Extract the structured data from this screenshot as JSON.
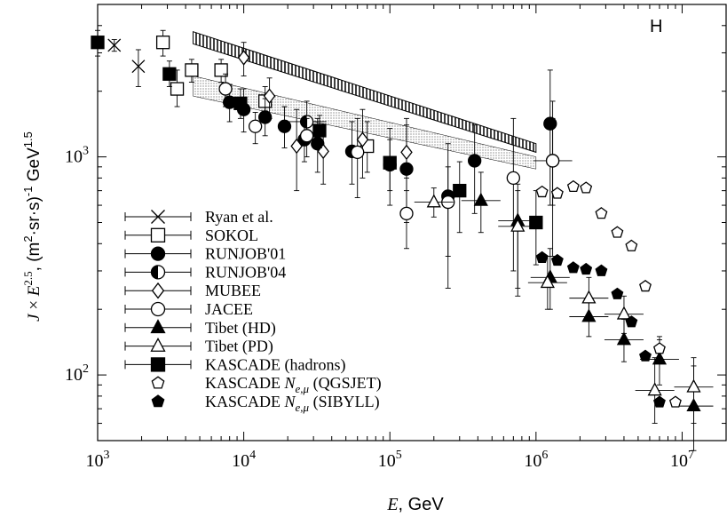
{
  "chart_data": {
    "type": "scatter",
    "panel_label": "H",
    "xlabel_italic": "E",
    "xlabel_rest": ", GeV",
    "ylabel_parts": {
      "J": "J",
      "times": " × ",
      "E": "E",
      "exp": "2.5",
      "unit_a": ", (m",
      "unit_sq": "2",
      "unit_b": "·sr·s)",
      "unit_m1": "-1",
      "unit_c": " GeV",
      "unit_exp": "1.5"
    },
    "x_scale": "log",
    "y_scale": "log",
    "xlim": [
      1000,
      20000000
    ],
    "ylim": [
      50,
      5000
    ],
    "x_ticks": [
      {
        "value": 1000,
        "base": "10",
        "exp": "3"
      },
      {
        "value": 10000,
        "base": "10",
        "exp": "4"
      },
      {
        "value": 100000,
        "base": "10",
        "exp": "5"
      },
      {
        "value": 1000000,
        "base": "10",
        "exp": "6"
      },
      {
        "value": 10000000,
        "base": "10",
        "exp": "7"
      }
    ],
    "y_ticks": [
      {
        "value": 100,
        "base": "10",
        "exp": "2"
      },
      {
        "value": 1000,
        "base": "10",
        "exp": "3"
      }
    ],
    "legend_placement": "bottom-left",
    "bands": [
      {
        "style": "hatched",
        "upper": [
          [
            4500,
            3750
          ],
          [
            1000000,
            1150
          ]
        ],
        "lower": [
          [
            4500,
            3300
          ],
          [
            1000000,
            1050
          ]
        ]
      },
      {
        "style": "dotted",
        "upper": [
          [
            4500,
            2350
          ],
          [
            1000000,
            1000
          ]
        ],
        "lower": [
          [
            4500,
            1900
          ],
          [
            1000000,
            880
          ]
        ]
      }
    ],
    "series": [
      {
        "name": "Ryan et al.",
        "marker": "cross",
        "points": [
          [
            1300,
            3250,
            3050,
            3450
          ],
          [
            1900,
            2600,
            2100,
            3100
          ]
        ]
      },
      {
        "name": "SOKOL",
        "marker": "open-square",
        "points": [
          [
            2800,
            3350,
            2900,
            3800
          ],
          [
            3500,
            2050,
            1700,
            2500
          ],
          [
            4400,
            2500,
            2200,
            2800
          ],
          [
            7000,
            2500,
            2200,
            2800
          ],
          [
            14000,
            1800,
            1550,
            2100
          ],
          [
            70000,
            1120,
            850,
            1450
          ]
        ]
      },
      {
        "name": "RUNJOB'01",
        "marker": "filled-circle",
        "points": [
          [
            8000,
            1780,
            1450,
            2150
          ],
          [
            10000,
            1650,
            1300,
            2050
          ],
          [
            14000,
            1520,
            1250,
            1850
          ],
          [
            19000,
            1380,
            1100,
            1700
          ],
          [
            26000,
            1200,
            950,
            1500
          ],
          [
            32000,
            1150,
            850,
            1500
          ],
          [
            55000,
            1060,
            750,
            1450
          ],
          [
            100000,
            920,
            600,
            1350
          ],
          [
            130000,
            880,
            500,
            1400
          ],
          [
            250000,
            660,
            250,
            1150
          ],
          [
            380000,
            960,
            550,
            1400
          ],
          [
            1250000,
            1420,
            600,
            2500
          ]
        ]
      },
      {
        "name": "RUNJOB'04",
        "marker": "half-circle",
        "points": [
          [
            27000,
            1450,
            1150,
            1800
          ],
          [
            1300000,
            960,
            600,
            1500
          ]
        ]
      },
      {
        "name": "MUBEE",
        "marker": "open-diamond",
        "points": [
          [
            10000,
            2850,
            2350,
            3350
          ],
          [
            15000,
            1900,
            1500,
            2300
          ],
          [
            23000,
            1120,
            700,
            1650
          ],
          [
            35000,
            1060,
            750,
            1400
          ],
          [
            65000,
            1200,
            800,
            1650
          ],
          [
            130000,
            1050,
            700,
            1500
          ]
        ]
      },
      {
        "name": "JACEE",
        "marker": "open-circle",
        "points": [
          [
            7500,
            2050,
            1700,
            2400
          ],
          [
            12000,
            1380,
            1150,
            1600
          ],
          [
            27000,
            1250,
            1000,
            1500
          ],
          [
            60000,
            1050,
            650,
            1500
          ],
          [
            130000,
            550,
            380,
            800
          ],
          [
            250000,
            620,
            350,
            900
          ],
          [
            700000,
            800,
            300,
            1500
          ],
          [
            1300000,
            960,
            350,
            1800
          ]
        ]
      },
      {
        "name": "Tibet (HD)",
        "marker": "filled-triangle",
        "points": [
          [
            420000,
            630,
            450,
            850
          ],
          [
            750000,
            510,
            250,
            750
          ],
          [
            1250000,
            280,
            200,
            380
          ],
          [
            2300000,
            185,
            150,
            230
          ],
          [
            4000000,
            145,
            115,
            180
          ],
          [
            7000000,
            118,
            90,
            150
          ],
          [
            12000000,
            72,
            45,
            110
          ]
        ]
      },
      {
        "name": "Tibet (PD)",
        "marker": "open-triangle",
        "points": [
          [
            200000,
            620,
            530,
            720
          ],
          [
            750000,
            480,
            230,
            700
          ],
          [
            1200000,
            265,
            200,
            350
          ],
          [
            2300000,
            225,
            180,
            280
          ],
          [
            4000000,
            190,
            155,
            230
          ],
          [
            6500000,
            85,
            60,
            120
          ],
          [
            12000000,
            88,
            60,
            120
          ]
        ]
      },
      {
        "name": "KASCADE (hadrons)",
        "marker": "filled-square",
        "points": [
          [
            1000,
            3350,
            2900,
            3800
          ],
          [
            3100,
            2400,
            2100,
            2750
          ],
          [
            9500,
            1760,
            1500,
            2050
          ],
          [
            33000,
            1320,
            1100,
            1550
          ],
          [
            100000,
            940,
            700,
            1200
          ],
          [
            300000,
            700,
            450,
            950
          ],
          [
            1000000,
            500,
            320,
            700
          ]
        ]
      },
      {
        "name": "KASCADE N_{e,μ} (QGSJET)",
        "marker": "open-pentagon",
        "points": [
          [
            1100000,
            690,
            null,
            null
          ],
          [
            1400000,
            680,
            null,
            null
          ],
          [
            1800000,
            730,
            null,
            null
          ],
          [
            2200000,
            720,
            null,
            null
          ],
          [
            2800000,
            550,
            null,
            null
          ],
          [
            3600000,
            450,
            null,
            null
          ],
          [
            4500000,
            390,
            null,
            null
          ],
          [
            5600000,
            255,
            null,
            null
          ],
          [
            7000000,
            132,
            120,
            145
          ],
          [
            9000000,
            75,
            null,
            null
          ]
        ]
      },
      {
        "name": "KASCADE N_{e,μ} (SIBYLL)",
        "marker": "filled-pentagon",
        "points": [
          [
            1100000,
            345,
            null,
            null
          ],
          [
            1400000,
            335,
            null,
            null
          ],
          [
            1800000,
            310,
            null,
            null
          ],
          [
            2200000,
            305,
            null,
            null
          ],
          [
            2800000,
            300,
            null,
            null
          ],
          [
            3600000,
            235,
            null,
            null
          ],
          [
            4500000,
            175,
            null,
            null
          ],
          [
            5600000,
            122,
            null,
            null
          ],
          [
            7000000,
            75,
            null,
            null
          ]
        ]
      }
    ],
    "legend_entries": [
      {
        "marker": "cross",
        "text": "Ryan et al."
      },
      {
        "marker": "open-square",
        "text": "SOKOL"
      },
      {
        "marker": "filled-circle",
        "text": "RUNJOB'01"
      },
      {
        "marker": "half-circle",
        "text": "RUNJOB'04"
      },
      {
        "marker": "open-diamond",
        "text": "MUBEE"
      },
      {
        "marker": "open-circle",
        "text": "JACEE"
      },
      {
        "marker": "filled-triangle",
        "text": "Tibet (HD)"
      },
      {
        "marker": "open-triangle",
        "text": "Tibet (PD)"
      },
      {
        "marker": "filled-square",
        "text": "KASCADE (hadrons)"
      },
      {
        "marker": "open-pentagon",
        "text": "KASCADE ",
        "italic": "N",
        "sub": "e,μ",
        "tail": " (QGSJET)"
      },
      {
        "marker": "filled-pentagon",
        "text": "KASCADE ",
        "italic": "N",
        "sub": "e,μ",
        "tail": " (SIBYLL)"
      }
    ]
  }
}
